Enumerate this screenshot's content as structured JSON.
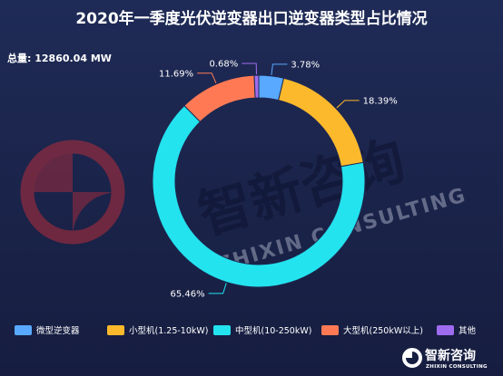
{
  "title": "2020年一季度光伏逆变器出口逆变器类型占比情况",
  "total_label": "总量: 12860.04 MW",
  "watermark": {
    "cn": "智新咨询",
    "en": "ZHIXIN CONSULTING"
  },
  "logo": {
    "cn": "智新咨询",
    "en": "ZHIXIN CONSULTING"
  },
  "chart_data": {
    "type": "pie",
    "donut": true,
    "title": "2020年一季度光伏逆变器出口逆变器类型占比情况",
    "legend_position": "bottom",
    "categories": [
      "微型逆变器",
      "小型机(1.25-10kW)",
      "中型机(10-250kW)",
      "大型机(250kW以上)",
      "其他"
    ],
    "values": [
      3.78,
      18.39,
      65.46,
      11.69,
      0.68
    ],
    "labels": [
      "3.78%",
      "18.39%",
      "65.46%",
      "11.69%",
      "0.68%"
    ],
    "colors": [
      "#58a9ff",
      "#fdb92c",
      "#23e3ef",
      "#ff7a54",
      "#9f6cf0"
    ]
  }
}
